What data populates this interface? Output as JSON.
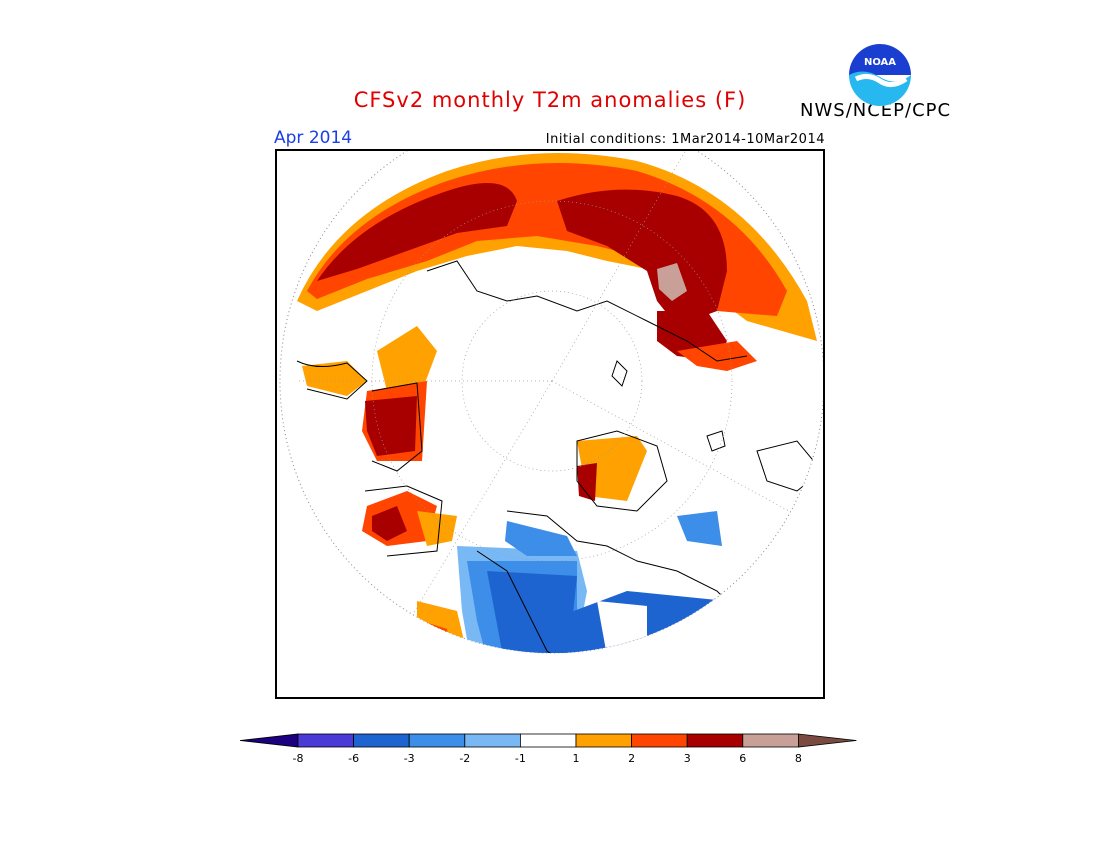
{
  "header": {
    "title": "CFSv2 monthly T2m anomalies (F)",
    "org": "NWS/NCEP/CPC",
    "month": "Apr 2014",
    "initial_conditions": "Initial conditions: 1Mar2014-10Mar2014",
    "logo_text": "NOAA"
  },
  "colorbar": {
    "colors": [
      "#1c0080",
      "#4a3ad6",
      "#1e64d0",
      "#3c8ee8",
      "#78b8f4",
      "#ffffff",
      "#ffa100",
      "#ff4500",
      "#a80000",
      "#c8a098",
      "#7a4a40"
    ],
    "labels": [
      "-8",
      "-6",
      "-3",
      "-2",
      "-1",
      "1",
      "2",
      "3",
      "6",
      "8"
    ]
  },
  "map": {
    "projection": "north-polar-stereographic",
    "palette": {
      "deep_red": "#a80000",
      "red_orange": "#ff4500",
      "orange": "#ffa100",
      "tan": "#c8a098",
      "blue": "#1e64d0",
      "mid_blue": "#3c8ee8",
      "light_blue": "#78b8f4"
    }
  }
}
